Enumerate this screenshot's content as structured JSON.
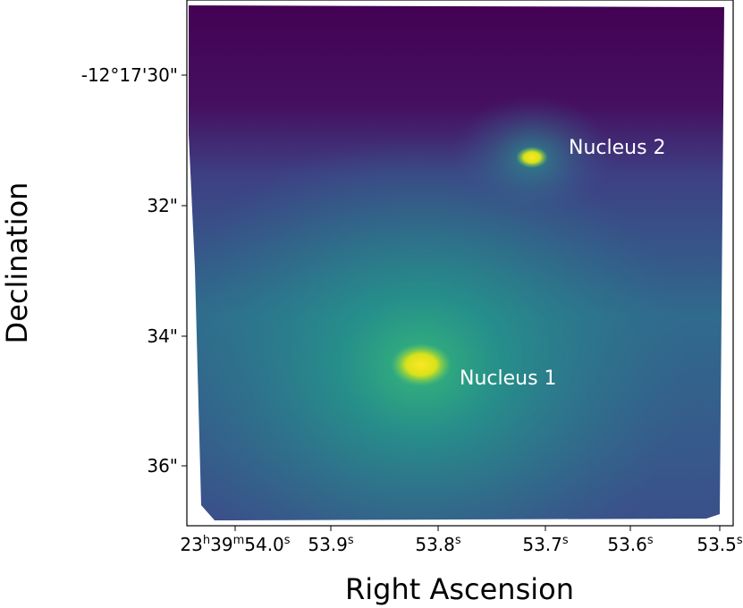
{
  "axes": {
    "x_label": "Right Ascension",
    "y_label": "Declination",
    "xticks": [
      {
        "parts": [
          {
            "text": "23",
            "sup": "h"
          },
          {
            "text": "39",
            "sup": "m"
          },
          {
            "text": "54.0",
            "sup": "s"
          }
        ]
      },
      {
        "parts": [
          {
            "text": "53.9",
            "sup": "s"
          }
        ]
      },
      {
        "parts": [
          {
            "text": "53.8",
            "sup": "s"
          }
        ]
      },
      {
        "parts": [
          {
            "text": "53.7",
            "sup": "s"
          }
        ]
      },
      {
        "parts": [
          {
            "text": "53.6",
            "sup": "s"
          }
        ]
      },
      {
        "parts": [
          {
            "text": "53.5",
            "sup": "s"
          }
        ]
      }
    ],
    "yticks": [
      "-12°17'30\"",
      "32\"",
      "34\"",
      "36\""
    ]
  },
  "annotations": [
    "Nucleus 1",
    "Nucleus 2"
  ]
}
